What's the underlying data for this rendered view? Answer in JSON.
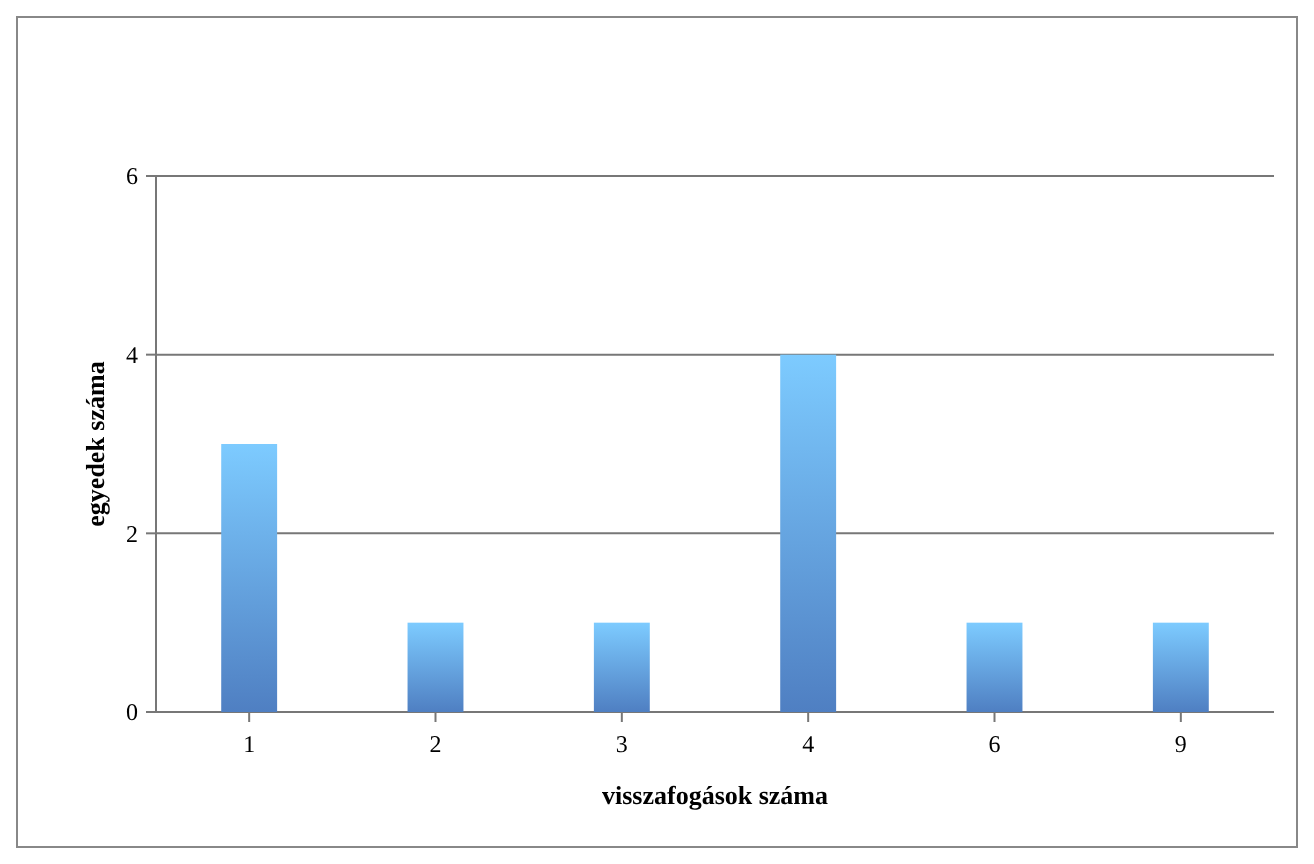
{
  "chart_data": {
    "type": "bar",
    "xlabel": "visszafogások száma",
    "ylabel": "egyedek száma",
    "categories": [
      "1",
      "2",
      "3",
      "4",
      "6",
      "9"
    ],
    "values": [
      3,
      1,
      1,
      4,
      1,
      1
    ],
    "color": "#5b93e0",
    "ylim": [
      0,
      6
    ],
    "yticks": [
      0,
      2,
      4,
      6
    ],
    "grid": "y"
  }
}
